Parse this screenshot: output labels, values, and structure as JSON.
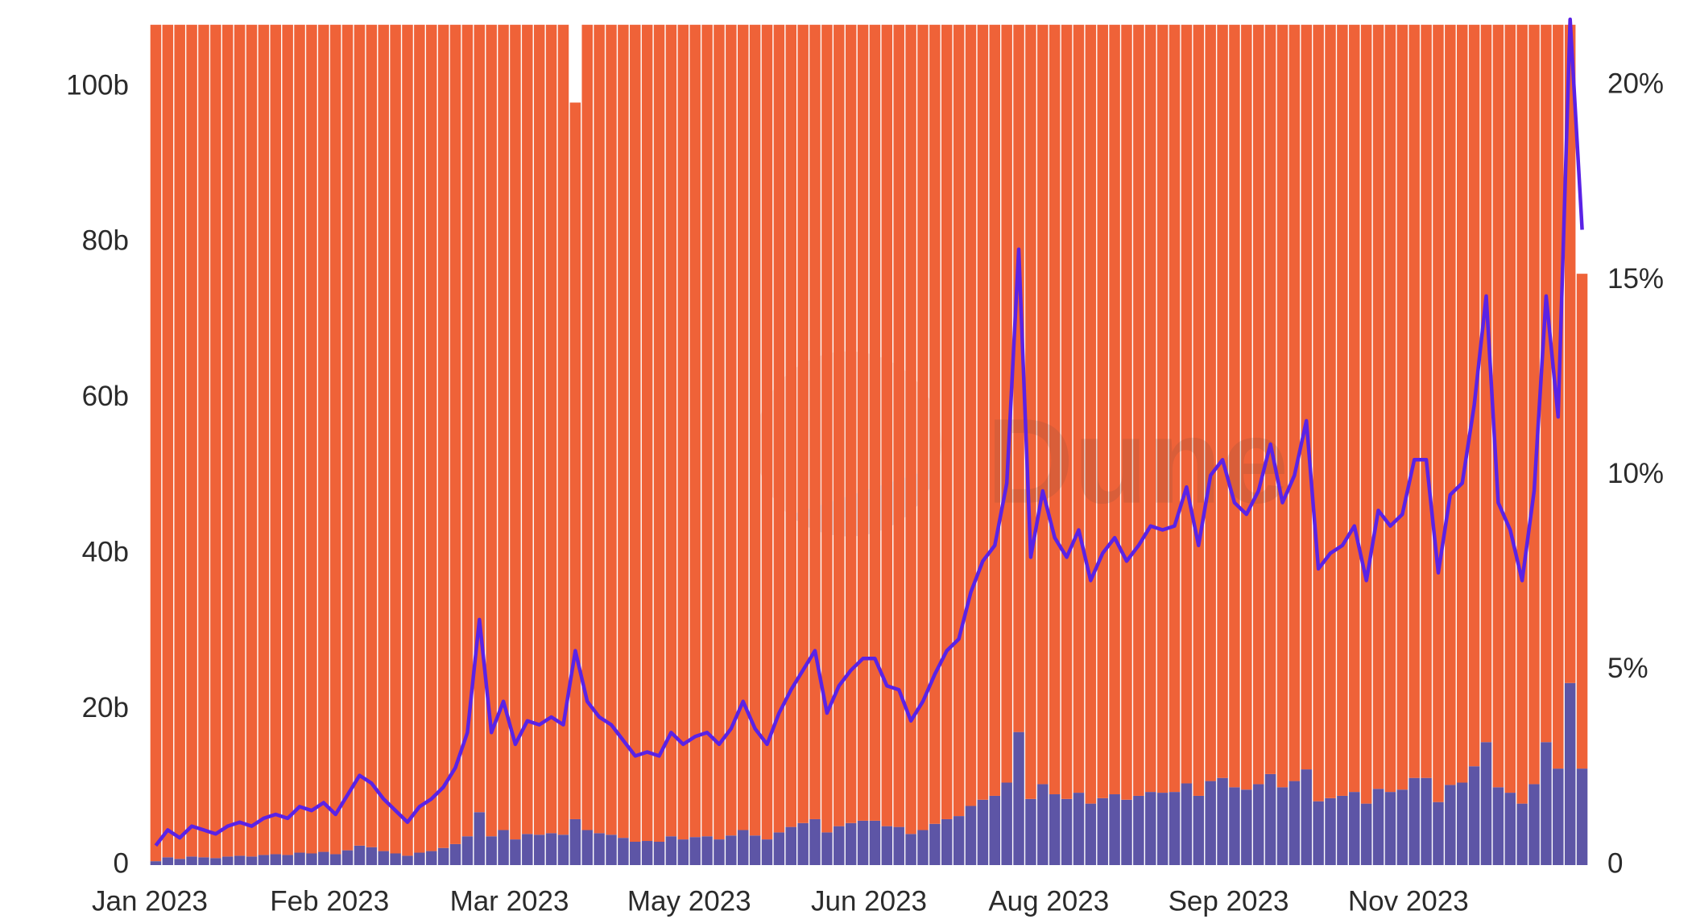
{
  "chart_data": {
    "type": "bar",
    "stacked": true,
    "watermark": "Dune",
    "categories": [
      "Jan 2023",
      null,
      null,
      null,
      null,
      null,
      null,
      null,
      null,
      null,
      null,
      null,
      null,
      null,
      null,
      "Feb 2023",
      null,
      null,
      null,
      null,
      null,
      null,
      null,
      null,
      null,
      null,
      null,
      null,
      null,
      null,
      "Mar 2023",
      null,
      null,
      null,
      null,
      null,
      null,
      null,
      null,
      null,
      null,
      null,
      null,
      null,
      null,
      "May 2023",
      null,
      null,
      null,
      null,
      null,
      null,
      null,
      null,
      null,
      null,
      null,
      null,
      null,
      null,
      "Jun 2023",
      null,
      null,
      null,
      null,
      null,
      null,
      null,
      null,
      null,
      null,
      null,
      null,
      null,
      null,
      "Aug 2023",
      null,
      null,
      null,
      null,
      null,
      null,
      null,
      null,
      null,
      null,
      null,
      null,
      null,
      null,
      "Sep 2023",
      null,
      null,
      null,
      null,
      null,
      null,
      null,
      null,
      null,
      null,
      null,
      null,
      null,
      null,
      "Nov 2023",
      null,
      null,
      null,
      null,
      null,
      null,
      null,
      null,
      null,
      null,
      null,
      null,
      null,
      null
    ],
    "series": [
      {
        "color": "#5d55a6",
        "values": [
          0.5,
          1.0,
          0.8,
          1.1,
          1.0,
          0.9,
          1.1,
          1.2,
          1.1,
          1.3,
          1.4,
          1.3,
          1.6,
          1.5,
          1.7,
          1.4,
          1.9,
          2.5,
          2.3,
          1.8,
          1.5,
          1.2,
          1.6,
          1.8,
          2.2,
          2.7,
          3.7,
          6.8,
          3.7,
          4.5,
          3.3,
          4.0,
          3.9,
          4.1,
          3.9,
          5.9,
          4.5,
          4.1,
          3.9,
          3.5,
          3.0,
          3.1,
          3.0,
          3.7,
          3.3,
          3.6,
          3.7,
          3.3,
          3.8,
          4.5,
          3.8,
          3.3,
          4.2,
          4.9,
          5.4,
          5.9,
          4.2,
          5.0,
          5.4,
          5.7,
          5.7,
          5.0,
          4.9,
          4.0,
          4.5,
          5.3,
          5.9,
          6.3,
          7.6,
          8.4,
          8.9,
          10.6,
          17.1,
          8.5,
          10.4,
          9.1,
          8.5,
          9.3,
          7.9,
          8.6,
          9.1,
          8.4,
          8.9,
          9.4,
          9.3,
          9.4,
          10.5,
          8.9,
          10.8,
          11.2,
          10.0,
          9.7,
          10.4,
          11.7,
          10.0,
          10.8,
          12.3,
          8.2,
          8.6,
          8.9,
          9.4,
          7.9,
          9.8,
          9.4,
          9.7,
          11.2,
          11.2,
          8.1,
          10.3,
          10.6,
          12.7,
          15.8,
          10.0,
          9.3,
          7.9,
          10.4,
          15.8,
          12.4,
          23.4,
          12.4
        ]
      },
      {
        "color": "#ef6238",
        "values": [
          107.5,
          107.0,
          107.2,
          106.9,
          107.0,
          107.1,
          106.9,
          106.8,
          106.9,
          106.7,
          106.6,
          106.7,
          106.4,
          106.5,
          106.3,
          106.6,
          106.1,
          105.5,
          105.7,
          106.2,
          106.5,
          106.8,
          106.4,
          106.2,
          105.8,
          105.3,
          104.3,
          101.2,
          104.3,
          103.5,
          104.7,
          104.0,
          104.1,
          103.9,
          104.1,
          92.1,
          103.5,
          103.9,
          104.1,
          104.5,
          105.0,
          104.9,
          105.0,
          104.3,
          104.7,
          104.4,
          104.3,
          104.7,
          104.2,
          103.5,
          104.2,
          104.7,
          103.8,
          103.1,
          102.6,
          102.1,
          103.8,
          103.0,
          102.6,
          102.3,
          102.3,
          103.0,
          103.1,
          104.0,
          103.5,
          102.7,
          102.1,
          101.7,
          100.4,
          99.6,
          99.1,
          97.4,
          90.9,
          99.5,
          97.6,
          98.9,
          99.5,
          98.7,
          100.1,
          99.4,
          98.9,
          99.6,
          99.1,
          98.6,
          98.7,
          98.6,
          97.5,
          99.1,
          97.2,
          96.8,
          98.0,
          98.3,
          97.6,
          96.3,
          98.0,
          97.2,
          95.7,
          99.8,
          99.4,
          99.1,
          98.6,
          100.1,
          98.2,
          98.6,
          98.3,
          96.8,
          96.8,
          99.9,
          97.7,
          97.4,
          95.3,
          92.2,
          98.0,
          98.7,
          100.1,
          97.6,
          92.2,
          95.6,
          84.6,
          63.6
        ]
      },
      {
        "type": "line",
        "axis": "y2",
        "color": "#5a22e6",
        "values": [
          0.5,
          0.9,
          0.7,
          1.0,
          0.9,
          0.8,
          1.0,
          1.1,
          1.0,
          1.2,
          1.3,
          1.2,
          1.5,
          1.4,
          1.6,
          1.3,
          1.8,
          2.3,
          2.1,
          1.7,
          1.4,
          1.1,
          1.5,
          1.7,
          2.0,
          2.5,
          3.4,
          6.3,
          3.4,
          4.2,
          3.1,
          3.7,
          3.6,
          3.8,
          3.6,
          5.5,
          4.2,
          3.8,
          3.6,
          3.2,
          2.8,
          2.9,
          2.8,
          3.4,
          3.1,
          3.3,
          3.4,
          3.1,
          3.5,
          4.2,
          3.5,
          3.1,
          3.9,
          4.5,
          5.0,
          5.5,
          3.9,
          4.6,
          5.0,
          5.3,
          5.3,
          4.6,
          4.5,
          3.7,
          4.2,
          4.9,
          5.5,
          5.8,
          7.0,
          7.8,
          8.2,
          9.8,
          15.8,
          7.9,
          9.6,
          8.4,
          7.9,
          8.6,
          7.3,
          8.0,
          8.4,
          7.8,
          8.2,
          8.7,
          8.6,
          8.7,
          9.7,
          8.2,
          10.0,
          10.4,
          9.3,
          9.0,
          9.6,
          10.8,
          9.3,
          10.0,
          11.4,
          7.6,
          8.0,
          8.2,
          8.7,
          7.3,
          9.1,
          8.7,
          9.0,
          10.4,
          10.4,
          7.5,
          9.5,
          9.8,
          11.8,
          14.6,
          9.3,
          8.6,
          7.3,
          9.6,
          14.6,
          11.5,
          21.7,
          16.3
        ]
      }
    ],
    "ylim": [
      0,
      108.7
    ],
    "yticks": [
      0,
      {
        "value": 20,
        "label": "20b"
      },
      {
        "value": 40,
        "label": "40b"
      },
      {
        "value": 60,
        "label": "60b"
      },
      {
        "value": 80,
        "label": "80b"
      },
      {
        "value": 100,
        "label": "100b"
      }
    ],
    "y2lim": [
      0,
      21.7
    ],
    "y2ticks": [
      0,
      {
        "value": 5,
        "label": "5%"
      },
      {
        "value": 10,
        "label": "10%"
      },
      {
        "value": 15,
        "label": "15%"
      },
      {
        "value": 20,
        "label": "20%"
      }
    ],
    "grid": false
  }
}
